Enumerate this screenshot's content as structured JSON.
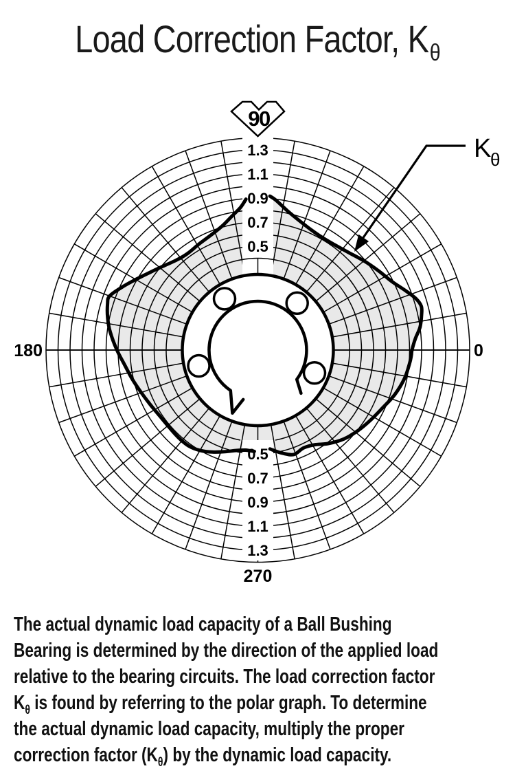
{
  "title": {
    "main": "Load Correction Factor, K",
    "sub": "θ"
  },
  "chart_data": {
    "type": "line",
    "subtype": "polar",
    "title": "Load Correction Factor, K_theta vs load direction angle",
    "grid": {
      "spoke_step_deg": 10,
      "ring_step": 0.1,
      "legend_position": "top-right"
    },
    "radial_range": [
      0.4,
      1.4
    ],
    "radial_rings": [
      0.4,
      0.5,
      0.6,
      0.7,
      0.8,
      0.9,
      1.0,
      1.1,
      1.2,
      1.3,
      1.4
    ],
    "radial_tick_labels": [
      "1.3",
      "1.1",
      "0.9",
      "0.7",
      "0.5"
    ],
    "angle_labels": {
      "right": "0",
      "top": "90",
      "left": "180",
      "bottom": "270"
    },
    "series": [
      {
        "name": "K_theta",
        "points_deg_value": [
          [
            0,
            0.92
          ],
          [
            4,
            0.95
          ],
          [
            8,
            1.0
          ],
          [
            12,
            1.03
          ],
          [
            15,
            1.045
          ],
          [
            18,
            1.02
          ],
          [
            22,
            0.96
          ],
          [
            27,
            0.89
          ],
          [
            33,
            0.84
          ],
          [
            40,
            0.79
          ],
          [
            47,
            0.745
          ],
          [
            54,
            0.72
          ],
          [
            60,
            0.715
          ],
          [
            66,
            0.73
          ],
          [
            72,
            0.765
          ],
          [
            78,
            0.82
          ],
          [
            83,
            0.89
          ],
          [
            85.5,
            0.92
          ],
          [
            94.5,
            0.895
          ],
          [
            97,
            0.83
          ],
          [
            101,
            0.77
          ],
          [
            106,
            0.71
          ],
          [
            112,
            0.67
          ],
          [
            119,
            0.645
          ],
          [
            126,
            0.63
          ],
          [
            132,
            0.645
          ],
          [
            138,
            0.685
          ],
          [
            144,
            0.74
          ],
          [
            150,
            0.81
          ],
          [
            155,
            0.88
          ],
          [
            160,
            0.95
          ],
          [
            163,
            0.945
          ],
          [
            168,
            0.915
          ],
          [
            173,
            0.875
          ],
          [
            180,
            0.81
          ],
          [
            186,
            0.755
          ],
          [
            193,
            0.71
          ],
          [
            200,
            0.67
          ],
          [
            207,
            0.64
          ],
          [
            214,
            0.62
          ],
          [
            221,
            0.615
          ],
          [
            228,
            0.62
          ],
          [
            234,
            0.62
          ],
          [
            240,
            0.6
          ],
          [
            246,
            0.565
          ],
          [
            252,
            0.525
          ],
          [
            258,
            0.49
          ],
          [
            263,
            0.475
          ],
          [
            268,
            0.48
          ],
          [
            277,
            0.465
          ],
          [
            283,
            0.515
          ],
          [
            289,
            0.555
          ],
          [
            295,
            0.535
          ],
          [
            301,
            0.555
          ],
          [
            307,
            0.61
          ],
          [
            314,
            0.665
          ],
          [
            321,
            0.705
          ],
          [
            328,
            0.74
          ],
          [
            335,
            0.78
          ],
          [
            342,
            0.835
          ],
          [
            349,
            0.88
          ],
          [
            355,
            0.905
          ],
          [
            358,
            0.915
          ]
        ]
      }
    ],
    "center_illustration": "ball-bushing-bearing-cross-section",
    "ball_circuit_angles_deg": [
      50,
      123,
      195,
      338
    ],
    "fill_color": "#e9e9e9",
    "line_color": "#000000",
    "background_color": "#ffffff"
  },
  "callout": {
    "main": "K",
    "sub": "θ"
  },
  "description": {
    "lines": [
      [
        {
          "t": "The actual dynamic load capacity of a Ball Bushing"
        }
      ],
      [
        {
          "t": "Bearing is determined by the direction of the applied load"
        }
      ],
      [
        {
          "t": "relative to the bearing circuits. The load correction factor"
        }
      ],
      [
        {
          "t": "K"
        },
        {
          "sub": "θ"
        },
        {
          "t": " is found by referring to the polar graph. To determine"
        }
      ],
      [
        {
          "t": "the actual dynamic load capacity, multiply the proper"
        }
      ],
      [
        {
          "t": "correction factor (K"
        },
        {
          "sub": "θ"
        },
        {
          "t": ") by the dynamic load capacity."
        }
      ]
    ]
  }
}
